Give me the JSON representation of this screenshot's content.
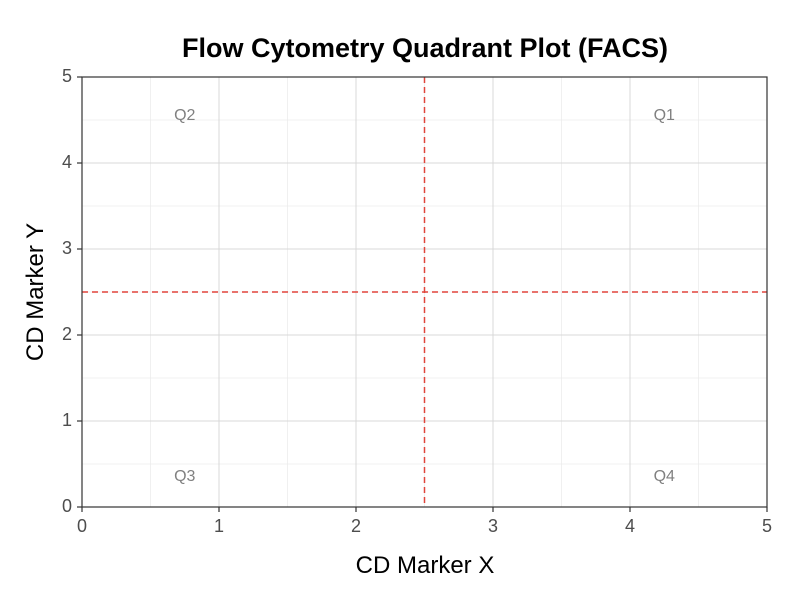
{
  "chart_data": {
    "type": "scatter",
    "title": "Flow Cytometry Quadrant Plot (FACS)",
    "xlabel": "CD Marker X",
    "ylabel": "CD Marker Y",
    "xlim": [
      0,
      5
    ],
    "ylim": [
      0,
      5
    ],
    "x_ticks": [
      0,
      1,
      2,
      3,
      4,
      5
    ],
    "y_ticks": [
      0,
      1,
      2,
      3,
      4,
      5
    ],
    "grid": true,
    "series": [],
    "thresholds": {
      "x": 2.5,
      "y": 2.5,
      "color": "#e0443b",
      "style": "dashed"
    },
    "quadrant_labels": [
      {
        "label": "Q2",
        "x": 0.75,
        "y": 4.55
      },
      {
        "label": "Q1",
        "x": 4.25,
        "y": 4.55
      },
      {
        "label": "Q3",
        "x": 0.75,
        "y": 0.35
      },
      {
        "label": "Q4",
        "x": 4.25,
        "y": 0.35
      }
    ],
    "colors": {
      "grid_major": "#d9d9d9",
      "grid_minor": "#ececec",
      "axis": "#333333",
      "tick_text": "#4d4d4d",
      "quadrant_text": "#808080",
      "title_text": "#000000"
    }
  }
}
